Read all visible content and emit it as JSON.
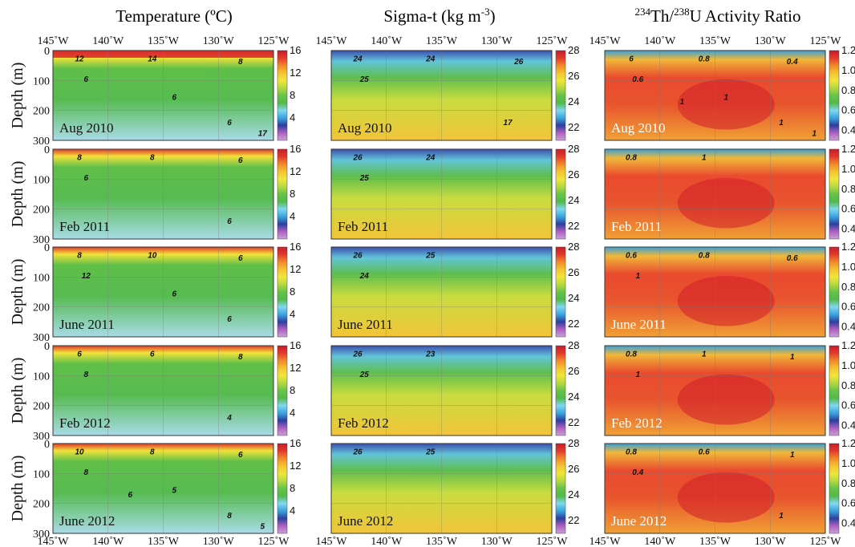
{
  "figure": {
    "columns": [
      {
        "id": "temp",
        "title": "Temperature (ºC)"
      },
      {
        "id": "sigma",
        "title": "Sigma-t (kg m",
        "title_sup": "-3",
        "title_end": ")"
      },
      {
        "id": "th",
        "title_sup1": "234",
        "title_mid": "Th/",
        "title_sup2": "238",
        "title_end": "U Activity Ratio"
      }
    ],
    "ylabel": "Depth (m)",
    "dates": [
      "Aug 2010",
      "Feb 2011",
      "June 2011",
      "Feb 2012",
      "June 2012"
    ]
  },
  "chart_data": [
    {
      "type": "heatmap",
      "variable": "Temperature",
      "title": "Temperature (ºC)",
      "xlabel": "",
      "ylabel": "Depth (m)",
      "x_ticks": [
        "145˚W",
        "140˚W",
        "135˚W",
        "130˚W",
        "125˚W"
      ],
      "x_range": [
        -145,
        -125
      ],
      "y_ticks": [
        0,
        100,
        200,
        300
      ],
      "y_range": [
        0,
        300
      ],
      "colorbar_ticks": [
        4,
        8,
        12,
        16
      ],
      "colorbar_range": [
        0,
        16
      ],
      "colorbar_colors": [
        "#c9a3d6",
        "#b05ec2",
        "#2c3fa0",
        "#3aa5e0",
        "#7fd8f0",
        "#52b947",
        "#66c447",
        "#b5d93f",
        "#f0e53a",
        "#f5c330",
        "#f08a2a",
        "#e33a2a",
        "#c41e2a"
      ],
      "panels": [
        {
          "date": "Aug 2010",
          "contour_labels": [
            "12",
            "14",
            "6",
            "8",
            "6",
            "6",
            "17"
          ]
        },
        {
          "date": "Feb 2011",
          "contour_labels": [
            "8",
            "8",
            "6",
            "6",
            "6"
          ]
        },
        {
          "date": "June 2011",
          "contour_labels": [
            "8",
            "10",
            "12",
            "6",
            "6",
            "6"
          ]
        },
        {
          "date": "Feb 2012",
          "contour_labels": [
            "6",
            "6",
            "8",
            "8",
            "4"
          ]
        },
        {
          "date": "June 2012",
          "contour_labels": [
            "10",
            "8",
            "8",
            "6",
            "8",
            "5",
            "5",
            "6"
          ]
        }
      ]
    },
    {
      "type": "heatmap",
      "variable": "Sigma-t",
      "title": "Sigma-t (kg m-3)",
      "xlabel": "",
      "ylabel": "",
      "x_ticks": [
        "145˚W",
        "140˚W",
        "135˚W",
        "130˚W",
        "125˚W"
      ],
      "x_range": [
        -145,
        -125
      ],
      "y_range": [
        0,
        300
      ],
      "colorbar_ticks": [
        22,
        24,
        26,
        28
      ],
      "colorbar_range": [
        21,
        28
      ],
      "colorbar_colors": [
        "#c9a3d6",
        "#b05ec2",
        "#2c3fa0",
        "#3aa5e0",
        "#7fd8f0",
        "#52b947",
        "#66c447",
        "#b5d93f",
        "#f0e53a",
        "#f5c330",
        "#f08a2a",
        "#e33a2a",
        "#c41e2a"
      ],
      "panels": [
        {
          "date": "Aug 2010",
          "contour_labels": [
            "24",
            "24",
            "25",
            "26",
            "17"
          ]
        },
        {
          "date": "Feb 2011",
          "contour_labels": [
            "26",
            "24",
            "25"
          ]
        },
        {
          "date": "June 2011",
          "contour_labels": [
            "26",
            "25",
            "24"
          ]
        },
        {
          "date": "Feb 2012",
          "contour_labels": [
            "26",
            "23",
            "25"
          ]
        },
        {
          "date": "June 2012",
          "contour_labels": [
            "26",
            "25"
          ]
        }
      ]
    },
    {
      "type": "heatmap",
      "variable": "234Th/238U Activity Ratio",
      "title": "234Th/238U Activity Ratio",
      "xlabel": "",
      "ylabel": "",
      "x_ticks": [
        "145˚W",
        "140˚W",
        "135˚W",
        "130˚W",
        "125˚W"
      ],
      "x_range": [
        -145,
        -125
      ],
      "y_range": [
        0,
        300
      ],
      "colorbar_ticks": [
        0.4,
        0.6,
        0.8,
        1.0,
        1.2
      ],
      "colorbar_tick_labels": [
        "0.4",
        "0.6",
        "0.8",
        "1.0",
        "1.2"
      ],
      "colorbar_range": [
        0.3,
        1.2
      ],
      "colorbar_colors": [
        "#c9a3d6",
        "#b05ec2",
        "#2c3fa0",
        "#3aa5e0",
        "#7fd8f0",
        "#52b947",
        "#66c447",
        "#b5d93f",
        "#f0e53a",
        "#f5c330",
        "#f08a2a",
        "#e33a2a",
        "#c41e2a"
      ],
      "panels": [
        {
          "date": "Aug 2010",
          "contour_labels": [
            "6",
            "0.8",
            "0.6",
            "0.4",
            "1",
            "1",
            "1",
            "1"
          ]
        },
        {
          "date": "Feb 2011",
          "contour_labels": [
            "0.8",
            "1"
          ]
        },
        {
          "date": "June 2011",
          "contour_labels": [
            "0.6",
            "0.8",
            "1",
            "0.6"
          ]
        },
        {
          "date": "Feb 2012",
          "contour_labels": [
            "0.8",
            "1",
            "1",
            "1"
          ]
        },
        {
          "date": "June 2012",
          "contour_labels": [
            "0.8",
            "0.6",
            "0.4",
            "1",
            "1"
          ]
        }
      ]
    }
  ]
}
